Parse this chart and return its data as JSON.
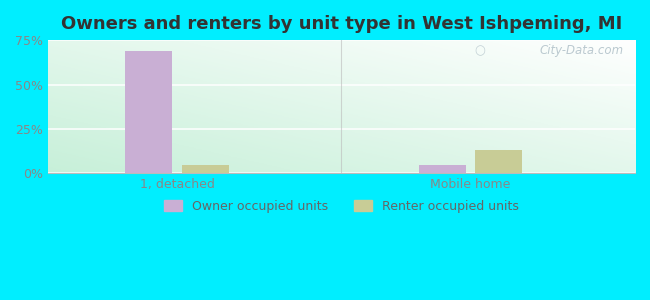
{
  "title": "Owners and renters by unit type in West Ishpeming, MI",
  "categories": [
    "1, detached",
    "Mobile home"
  ],
  "owner_values": [
    69.0,
    5.0
  ],
  "renter_values": [
    5.0,
    13.0
  ],
  "owner_color": "#c9afd4",
  "renter_color": "#c8cc96",
  "ylim": [
    0,
    75
  ],
  "yticks": [
    0,
    25,
    50,
    75
  ],
  "yticklabels": [
    "0%",
    "25%",
    "50%",
    "75%"
  ],
  "bar_width": 0.08,
  "group_positions": [
    0.22,
    0.72
  ],
  "xlim": [
    0,
    1.0
  ],
  "outer_bg": "#00eeff",
  "watermark": "City-Data.com",
  "legend_labels": [
    "Owner occupied units",
    "Renter occupied units"
  ],
  "title_fontsize": 13,
  "tick_fontsize": 9,
  "legend_fontsize": 9,
  "grid_color": "#e8e8e8",
  "bg_gradient_colors": [
    "#c8f0d8",
    "#f0faf8",
    "#ffffff"
  ],
  "separator_color": "#bbbbbb"
}
